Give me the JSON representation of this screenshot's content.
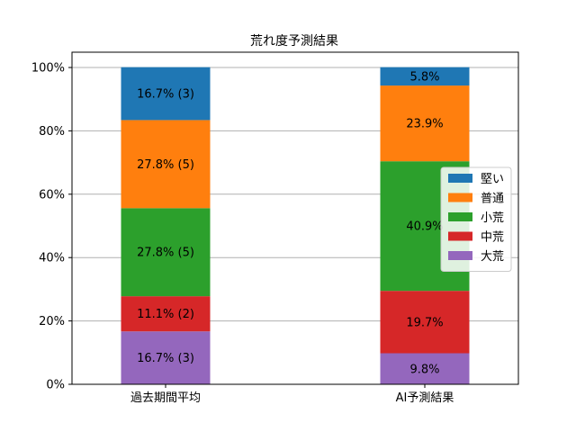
{
  "chart_data": {
    "type": "bar",
    "stacked": true,
    "title": "荒れ度予測結果",
    "xlabel": "",
    "ylabel": "",
    "ylim": [
      0,
      100
    ],
    "yticks": [
      0,
      20,
      40,
      60,
      80,
      100
    ],
    "ytick_labels": [
      "0%",
      "20%",
      "40%",
      "60%",
      "80%",
      "100%"
    ],
    "grid": "horizontal",
    "legend_position": "right",
    "categories": [
      "過去期間平均",
      "AI予測結果"
    ],
    "series": [
      {
        "name": "大荒",
        "color": "#9467bd",
        "values": [
          16.7,
          9.8
        ],
        "labels": [
          "16.7% (3)",
          "9.8%"
        ]
      },
      {
        "name": "中荒",
        "color": "#d62728",
        "values": [
          11.1,
          19.7
        ],
        "labels": [
          "11.1% (2)",
          "19.7%"
        ]
      },
      {
        "name": "小荒",
        "color": "#2ca02c",
        "values": [
          27.8,
          40.9
        ],
        "labels": [
          "27.8% (5)",
          "40.9%"
        ]
      },
      {
        "name": "普通",
        "color": "#ff7f0e",
        "values": [
          27.8,
          23.9
        ],
        "labels": [
          "27.8% (5)",
          "23.9%"
        ]
      },
      {
        "name": "堅い",
        "color": "#1f77b4",
        "values": [
          16.7,
          5.8
        ],
        "labels": [
          "16.7% (3)",
          "5.8%"
        ]
      }
    ],
    "legend_order": [
      "堅い",
      "普通",
      "小荒",
      "中荒",
      "大荒"
    ]
  }
}
